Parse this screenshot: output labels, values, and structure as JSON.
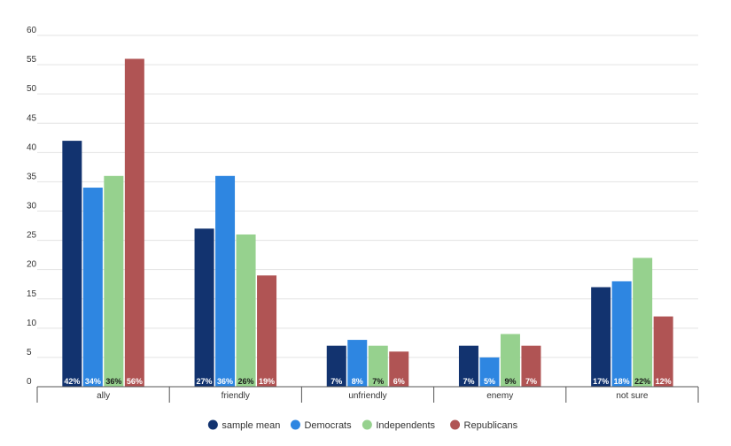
{
  "chart_data": {
    "type": "bar",
    "categories": [
      "ally",
      "friendly",
      "unfriendly",
      "enemy",
      "not sure"
    ],
    "series": [
      {
        "name": "sample mean",
        "color": "#12336f",
        "values": [
          42,
          27,
          7,
          7,
          17
        ],
        "labels": [
          "42%",
          "27%",
          "7%",
          "7%",
          "17%"
        ],
        "label_color": "#ffffff"
      },
      {
        "name": "Democrats",
        "color": "#2e86e1",
        "values": [
          34,
          36,
          8,
          5,
          18
        ],
        "labels": [
          "34%",
          "36%",
          "8%",
          "5%",
          "18%"
        ],
        "label_color": "#ffffff"
      },
      {
        "name": "Independents",
        "color": "#96d18e",
        "values": [
          36,
          26,
          7,
          9,
          22
        ],
        "labels": [
          "36%",
          "26%",
          "7%",
          "9%",
          "22%"
        ],
        "label_color": "#1a1a1a"
      },
      {
        "name": "Republicans",
        "color": "#b05454",
        "values": [
          56,
          19,
          6,
          7,
          12
        ],
        "labels": [
          "56%",
          "19%",
          "6%",
          "7%",
          "12%"
        ],
        "label_color": "#ffffff"
      }
    ],
    "yticks": [
      0,
      5,
      10,
      15,
      20,
      25,
      30,
      35,
      40,
      45,
      50,
      55,
      60
    ],
    "ylim": [
      0,
      60
    ],
    "grid": true,
    "legend_position": "bottom-center",
    "title": "",
    "xlabel": "",
    "ylabel": ""
  }
}
